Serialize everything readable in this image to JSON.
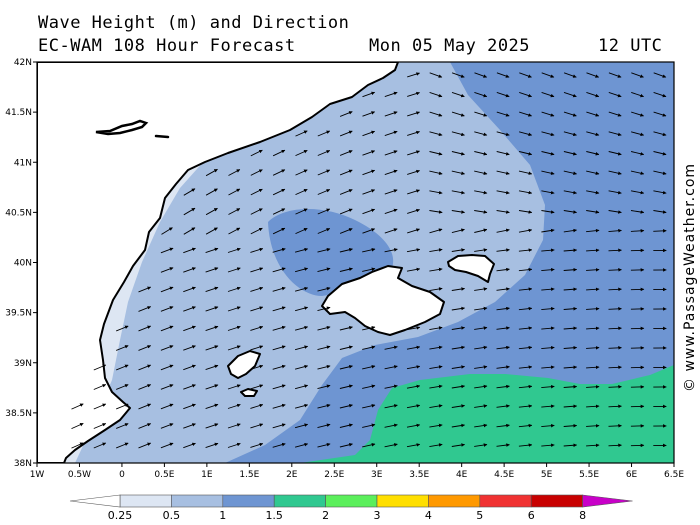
{
  "header": {
    "title_line_1": "Wave Height (m) and Direction",
    "title_line_2": "EC-WAM 108 Hour Forecast",
    "date": "Mon 05 May 2025",
    "time": "12 UTC"
  },
  "credit": "© www.PassageWeather.com",
  "map": {
    "lon_range": [
      -1,
      6.5
    ],
    "lat_range": [
      38,
      42
    ],
    "lon_ticks": [
      "1W",
      "0.5W",
      "0",
      "0.5E",
      "1E",
      "1.5E",
      "2E",
      "2.5E",
      "3E",
      "3.5E",
      "4E",
      "4.5E",
      "5E",
      "5.5E",
      "6E",
      "6.5E"
    ],
    "lat_ticks": [
      "42N",
      "41.5N",
      "41N",
      "40.5N",
      "40N",
      "39.5N",
      "39N",
      "38.5N",
      "38N"
    ]
  },
  "legend": {
    "levels": [
      "0.25",
      "0.5",
      "1",
      "1.5",
      "2",
      "3",
      "4",
      "5",
      "6",
      "8"
    ],
    "colors": [
      "#ffffff",
      "#dde6f3",
      "#a7bfe1",
      "#6e95d2",
      "#30c890",
      "#5bef5b",
      "#ffdf00",
      "#ff9900",
      "#f03232",
      "#c80000",
      "#c800c8"
    ]
  },
  "colors": {
    "land": "#ffffff",
    "sea_lt_05": "#dde6f3",
    "sea_05_1": "#a7bfe1",
    "sea_1_15": "#6e95d2",
    "sea_15_2": "#30c890",
    "coast": "#000000"
  }
}
